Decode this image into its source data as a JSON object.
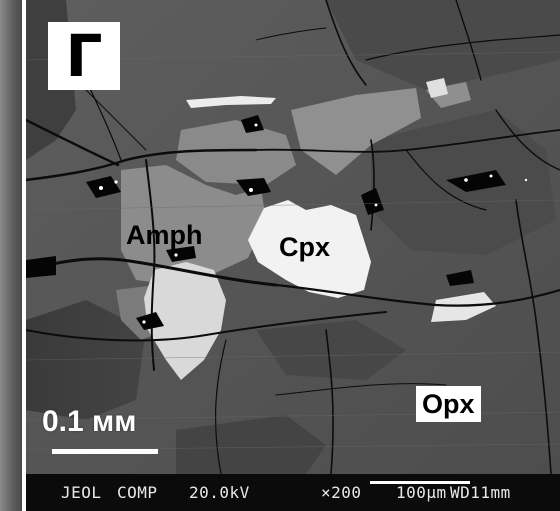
{
  "figure": {
    "panel_letter": "Г",
    "labels": {
      "amph": "Amph",
      "cpx": "Cpx",
      "opx": "Opx"
    },
    "scale_bar_text": "0.1 мм"
  },
  "sem_footer": {
    "instrument": "JEOL",
    "mode": "COMP",
    "voltage": "20.0kV",
    "magnification": "×200",
    "scale": "100μm",
    "working_distance": "WD11mm"
  }
}
